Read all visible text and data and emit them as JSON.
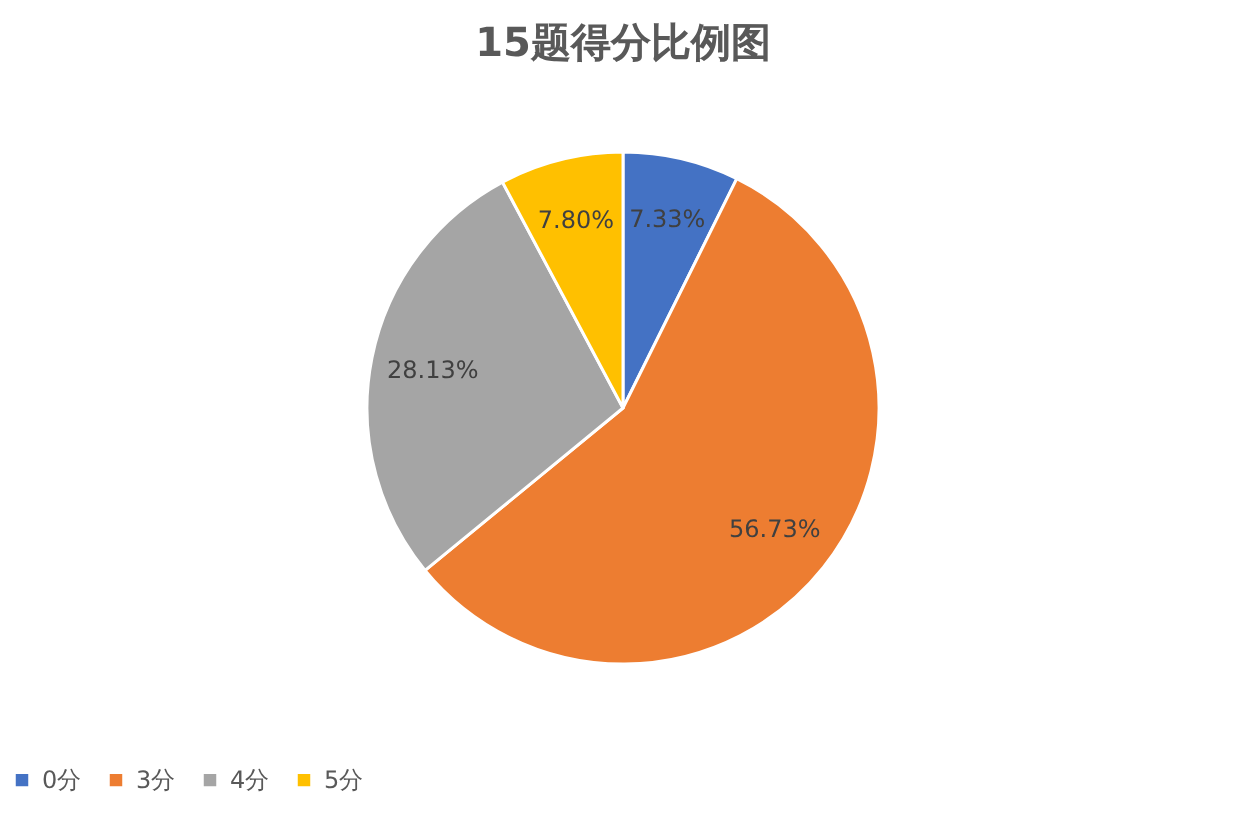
{
  "chart_data": {
    "type": "pie",
    "title": "15题得分比例图",
    "categories": [
      "0分",
      "3分",
      "4分",
      "5分"
    ],
    "values": [
      7.33,
      56.73,
      28.13,
      7.8
    ],
    "colors": [
      "#4472c4",
      "#ed7d31",
      "#a5a5a5",
      "#ffc000"
    ],
    "value_labels": [
      "7.33%",
      "56.73%",
      "28.13%",
      "7.80%"
    ],
    "legend": "bottom"
  }
}
